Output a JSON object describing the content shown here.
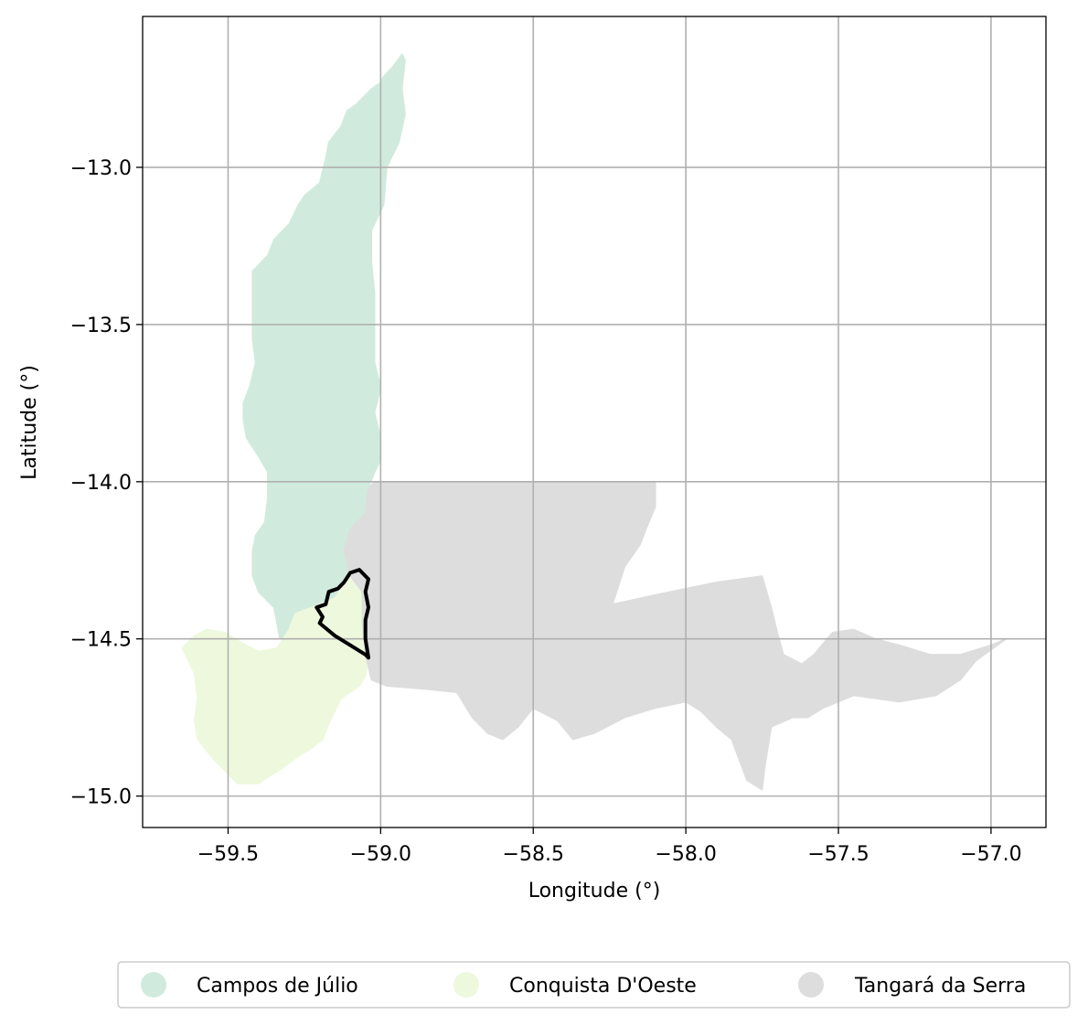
{
  "chart_data": {
    "type": "map",
    "title": "",
    "xlabel": "Longitude (°)",
    "ylabel": "Latitude (°)",
    "xlim": [
      -59.78,
      -56.82
    ],
    "ylim": [
      -15.1,
      -12.52
    ],
    "grid": true,
    "legend_placement": "bottom-center",
    "x_ticks": [
      {
        "value": -59.5,
        "label": "−59.5"
      },
      {
        "value": -59.0,
        "label": "−59.0"
      },
      {
        "value": -58.5,
        "label": "−58.5"
      },
      {
        "value": -58.0,
        "label": "−58.0"
      },
      {
        "value": -57.5,
        "label": "−57.5"
      },
      {
        "value": -57.0,
        "label": "−57.0"
      }
    ],
    "y_ticks": [
      {
        "value": -13.0,
        "label": "−13.0"
      },
      {
        "value": -13.5,
        "label": "−13.5"
      },
      {
        "value": -14.0,
        "label": "−14.0"
      },
      {
        "value": -14.5,
        "label": "−14.5"
      },
      {
        "value": -15.0,
        "label": "−15.0"
      }
    ],
    "regions": [
      {
        "name": "Campos de Júlio",
        "color": "#d0ebdd",
        "polygon": [
          [
            -58.93,
            -12.64
          ],
          [
            -58.96,
            -12.68
          ],
          [
            -58.99,
            -12.71
          ],
          [
            -59.0,
            -12.73
          ],
          [
            -59.03,
            -12.75
          ],
          [
            -59.06,
            -12.78
          ],
          [
            -59.08,
            -12.8
          ],
          [
            -59.11,
            -12.82
          ],
          [
            -59.13,
            -12.87
          ],
          [
            -59.17,
            -12.92
          ],
          [
            -59.18,
            -12.97
          ],
          [
            -59.2,
            -13.05
          ],
          [
            -59.25,
            -13.09
          ],
          [
            -59.27,
            -13.12
          ],
          [
            -59.3,
            -13.18
          ],
          [
            -59.35,
            -13.23
          ],
          [
            -59.37,
            -13.28
          ],
          [
            -59.42,
            -13.33
          ],
          [
            -59.42,
            -13.44
          ],
          [
            -59.42,
            -13.55
          ],
          [
            -59.41,
            -13.62
          ],
          [
            -59.43,
            -13.7
          ],
          [
            -59.45,
            -13.75
          ],
          [
            -59.45,
            -13.8
          ],
          [
            -59.44,
            -13.86
          ],
          [
            -59.4,
            -13.92
          ],
          [
            -59.37,
            -13.97
          ],
          [
            -59.37,
            -14.05
          ],
          [
            -59.38,
            -14.13
          ],
          [
            -59.41,
            -14.17
          ],
          [
            -59.42,
            -14.22
          ],
          [
            -59.42,
            -14.3
          ],
          [
            -59.4,
            -14.35
          ],
          [
            -59.35,
            -14.4
          ],
          [
            -59.34,
            -14.45
          ],
          [
            -59.33,
            -14.5
          ],
          [
            -59.3,
            -14.48
          ],
          [
            -59.28,
            -14.42
          ],
          [
            -59.2,
            -14.39
          ],
          [
            -59.15,
            -14.37
          ],
          [
            -59.1,
            -14.3
          ],
          [
            -59.06,
            -14.27
          ],
          [
            -59.05,
            -14.2
          ],
          [
            -59.05,
            -14.1
          ],
          [
            -59.04,
            -14.02
          ],
          [
            -59.02,
            -13.97
          ],
          [
            -59.0,
            -13.93
          ],
          [
            -59.0,
            -13.86
          ],
          [
            -59.02,
            -13.78
          ],
          [
            -59.0,
            -13.7
          ],
          [
            -59.02,
            -13.62
          ],
          [
            -59.02,
            -13.5
          ],
          [
            -59.02,
            -13.4
          ],
          [
            -59.03,
            -13.3
          ],
          [
            -59.03,
            -13.2
          ],
          [
            -58.99,
            -13.12
          ],
          [
            -58.98,
            -13.0
          ],
          [
            -58.94,
            -12.92
          ],
          [
            -58.92,
            -12.83
          ],
          [
            -58.93,
            -12.75
          ],
          [
            -58.92,
            -12.66
          ]
        ]
      },
      {
        "name": "Conquista D'Oeste",
        "color": "#edf8dd",
        "polygon": [
          [
            -59.3,
            -14.47
          ],
          [
            -59.28,
            -14.42
          ],
          [
            -59.2,
            -14.39
          ],
          [
            -59.15,
            -14.37
          ],
          [
            -59.1,
            -14.3
          ],
          [
            -59.06,
            -14.27
          ],
          [
            -59.04,
            -14.35
          ],
          [
            -59.04,
            -14.45
          ],
          [
            -59.04,
            -14.55
          ],
          [
            -59.05,
            -14.62
          ],
          [
            -59.07,
            -14.65
          ],
          [
            -59.1,
            -14.67
          ],
          [
            -59.13,
            -14.69
          ],
          [
            -59.15,
            -14.73
          ],
          [
            -59.17,
            -14.77
          ],
          [
            -59.19,
            -14.82
          ],
          [
            -59.23,
            -14.85
          ],
          [
            -59.28,
            -14.88
          ],
          [
            -59.32,
            -14.91
          ],
          [
            -59.37,
            -14.94
          ],
          [
            -59.4,
            -14.96
          ],
          [
            -59.47,
            -14.96
          ],
          [
            -59.5,
            -14.93
          ],
          [
            -59.55,
            -14.88
          ],
          [
            -59.6,
            -14.82
          ],
          [
            -59.61,
            -14.76
          ],
          [
            -59.6,
            -14.69
          ],
          [
            -59.61,
            -14.61
          ],
          [
            -59.63,
            -14.57
          ],
          [
            -59.65,
            -14.53
          ],
          [
            -59.61,
            -14.49
          ],
          [
            -59.57,
            -14.47
          ],
          [
            -59.51,
            -14.48
          ],
          [
            -59.46,
            -14.51
          ],
          [
            -59.4,
            -14.54
          ],
          [
            -59.34,
            -14.53
          ]
        ]
      },
      {
        "name": "Tangará da Serra",
        "color": "#dddddd",
        "polygon": [
          [
            -59.05,
            -14.1
          ],
          [
            -59.04,
            -14.02
          ],
          [
            -59.02,
            -14.0
          ],
          [
            -58.9,
            -14.0
          ],
          [
            -58.75,
            -14.0
          ],
          [
            -58.6,
            -14.0
          ],
          [
            -58.45,
            -14.0
          ],
          [
            -58.3,
            -14.0
          ],
          [
            -58.1,
            -14.0
          ],
          [
            -58.1,
            -14.08
          ],
          [
            -58.13,
            -14.15
          ],
          [
            -58.15,
            -14.2
          ],
          [
            -58.2,
            -14.27
          ],
          [
            -58.22,
            -14.33
          ],
          [
            -58.24,
            -14.39
          ],
          [
            -58.1,
            -14.36
          ],
          [
            -57.9,
            -14.32
          ],
          [
            -57.75,
            -14.3
          ],
          [
            -57.72,
            -14.4
          ],
          [
            -57.7,
            -14.48
          ],
          [
            -57.68,
            -14.55
          ],
          [
            -57.62,
            -14.58
          ],
          [
            -57.58,
            -14.55
          ],
          [
            -57.52,
            -14.48
          ],
          [
            -57.45,
            -14.47
          ],
          [
            -57.38,
            -14.5
          ],
          [
            -57.3,
            -14.52
          ],
          [
            -57.2,
            -14.55
          ],
          [
            -57.1,
            -14.55
          ],
          [
            -57.0,
            -14.52
          ],
          [
            -56.95,
            -14.5
          ],
          [
            -57.05,
            -14.57
          ],
          [
            -57.1,
            -14.63
          ],
          [
            -57.18,
            -14.68
          ],
          [
            -57.3,
            -14.7
          ],
          [
            -57.45,
            -14.68
          ],
          [
            -57.55,
            -14.72
          ],
          [
            -57.6,
            -14.75
          ],
          [
            -57.65,
            -14.75
          ],
          [
            -57.72,
            -14.78
          ],
          [
            -57.74,
            -14.9
          ],
          [
            -57.75,
            -14.98
          ],
          [
            -57.8,
            -14.95
          ],
          [
            -57.85,
            -14.82
          ],
          [
            -57.9,
            -14.78
          ],
          [
            -57.95,
            -14.73
          ],
          [
            -58.0,
            -14.7
          ],
          [
            -58.1,
            -14.72
          ],
          [
            -58.2,
            -14.75
          ],
          [
            -58.3,
            -14.8
          ],
          [
            -58.37,
            -14.82
          ],
          [
            -58.42,
            -14.76
          ],
          [
            -58.5,
            -14.72
          ],
          [
            -58.55,
            -14.78
          ],
          [
            -58.6,
            -14.82
          ],
          [
            -58.65,
            -14.8
          ],
          [
            -58.7,
            -14.75
          ],
          [
            -58.75,
            -14.67
          ],
          [
            -58.85,
            -14.66
          ],
          [
            -58.98,
            -14.65
          ],
          [
            -59.03,
            -14.63
          ],
          [
            -59.05,
            -14.55
          ],
          [
            -59.06,
            -14.45
          ],
          [
            -59.06,
            -14.35
          ],
          [
            -59.1,
            -14.3
          ],
          [
            -59.12,
            -14.22
          ],
          [
            -59.1,
            -14.15
          ]
        ]
      }
    ],
    "outline": {
      "color": "#000000",
      "polygon": [
        [
          -59.07,
          -14.28
        ],
        [
          -59.1,
          -14.29
        ],
        [
          -59.12,
          -14.32
        ],
        [
          -59.14,
          -14.34
        ],
        [
          -59.17,
          -14.35
        ],
        [
          -59.18,
          -14.39
        ],
        [
          -59.21,
          -14.4
        ],
        [
          -59.19,
          -14.43
        ],
        [
          -59.2,
          -14.45
        ],
        [
          -59.15,
          -14.49
        ],
        [
          -59.1,
          -14.52
        ],
        [
          -59.05,
          -14.55
        ],
        [
          -59.04,
          -14.56
        ],
        [
          -59.05,
          -14.5
        ],
        [
          -59.05,
          -14.44
        ],
        [
          -59.04,
          -14.4
        ],
        [
          -59.05,
          -14.35
        ],
        [
          -59.04,
          -14.31
        ],
        [
          -59.05,
          -14.3
        ]
      ]
    },
    "legend": [
      {
        "label": "Campos de Júlio",
        "color": "#d0ebdd"
      },
      {
        "label": "Conquista D'Oeste",
        "color": "#edf8dd"
      },
      {
        "label": "Tangará da Serra",
        "color": "#dddddd"
      }
    ]
  }
}
